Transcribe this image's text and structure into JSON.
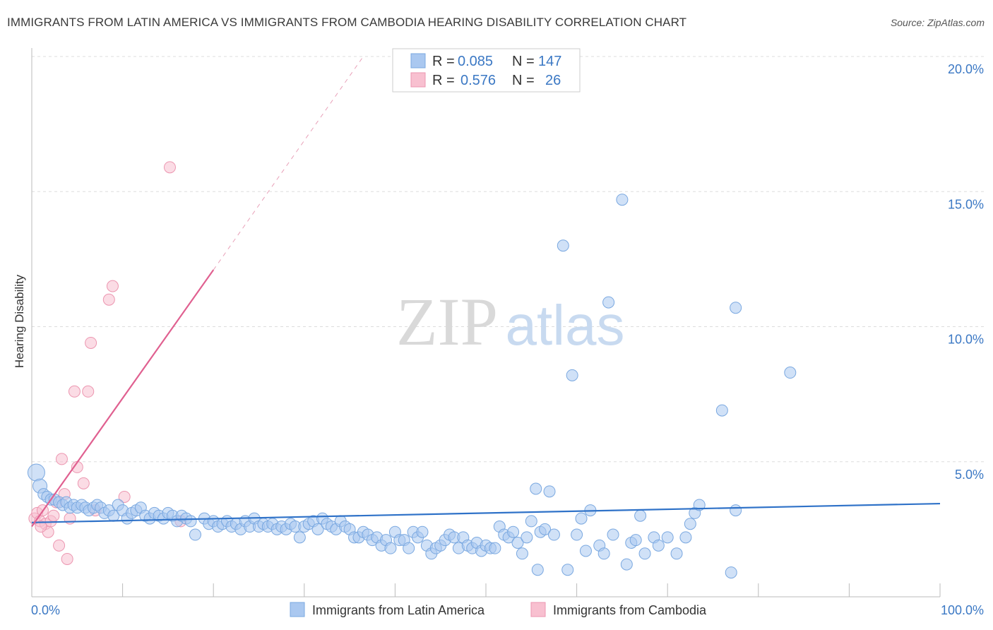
{
  "title": "IMMIGRANTS FROM LATIN AMERICA VS IMMIGRANTS FROM CAMBODIA HEARING DISABILITY CORRELATION CHART",
  "source": "Source: ZipAtlas.com",
  "watermark": {
    "zip": "ZIP",
    "atlas": "atlas"
  },
  "colors": {
    "blue_fill": "#aac8f0",
    "blue_stroke": "#7aa8e0",
    "blue_line": "#2f72c8",
    "pink_fill": "#f8c0d0",
    "pink_stroke": "#ec96b0",
    "pink_line": "#e06090",
    "axis_text": "#3b78c4",
    "grid": "#dddddd"
  },
  "legend": {
    "rows": [
      {
        "r_label": "R =",
        "r_value": "0.085",
        "n_label": "N =",
        "n_value": "147"
      },
      {
        "r_label": "R =",
        "r_value": "0.576",
        "n_label": "N =",
        "n_value": "26"
      }
    ]
  },
  "bottom_legend": [
    "Immigrants from Latin America",
    "Immigrants from Cambodia"
  ],
  "chart_data": {
    "type": "scatter",
    "xlabel": "",
    "ylabel": "Hearing Disability",
    "xlim": [
      0,
      100
    ],
    "ylim": [
      0,
      20
    ],
    "x_tick_labels": [
      "0.0%",
      "100.0%"
    ],
    "y_ticks": [
      5,
      10,
      15,
      20
    ],
    "y_tick_labels": [
      "5.0%",
      "10.0%",
      "15.0%",
      "20.0%"
    ],
    "grid": true,
    "series": [
      {
        "name": "Immigrants from Latin America",
        "color": "blue",
        "trend": {
          "x": [
            0,
            100
          ],
          "y": [
            2.75,
            3.45
          ],
          "dashed_from": null
        },
        "points": [
          [
            0.5,
            4.6
          ],
          [
            0.9,
            4.1
          ],
          [
            1.3,
            3.8
          ],
          [
            1.7,
            3.7
          ],
          [
            2.1,
            3.6
          ],
          [
            2.5,
            3.6
          ],
          [
            3.0,
            3.5
          ],
          [
            3.4,
            3.4
          ],
          [
            3.8,
            3.5
          ],
          [
            4.2,
            3.3
          ],
          [
            4.6,
            3.4
          ],
          [
            5.0,
            3.3
          ],
          [
            5.5,
            3.4
          ],
          [
            5.9,
            3.3
          ],
          [
            6.3,
            3.2
          ],
          [
            6.8,
            3.3
          ],
          [
            7.2,
            3.4
          ],
          [
            7.6,
            3.3
          ],
          [
            8.0,
            3.1
          ],
          [
            8.5,
            3.2
          ],
          [
            9.0,
            3.0
          ],
          [
            9.5,
            3.4
          ],
          [
            10.0,
            3.2
          ],
          [
            10.5,
            2.9
          ],
          [
            11.0,
            3.1
          ],
          [
            11.5,
            3.2
          ],
          [
            12.0,
            3.3
          ],
          [
            12.5,
            3.0
          ],
          [
            13.0,
            2.9
          ],
          [
            13.5,
            3.1
          ],
          [
            14.0,
            3.0
          ],
          [
            14.5,
            2.9
          ],
          [
            15.0,
            3.1
          ],
          [
            15.5,
            3.0
          ],
          [
            16.0,
            2.8
          ],
          [
            16.5,
            3.0
          ],
          [
            17.0,
            2.9
          ],
          [
            17.5,
            2.8
          ],
          [
            18.0,
            2.3
          ],
          [
            19.0,
            2.9
          ],
          [
            19.5,
            2.7
          ],
          [
            20.0,
            2.8
          ],
          [
            20.5,
            2.6
          ],
          [
            21.0,
            2.7
          ],
          [
            21.5,
            2.8
          ],
          [
            22.0,
            2.6
          ],
          [
            22.5,
            2.7
          ],
          [
            23.0,
            2.5
          ],
          [
            23.5,
            2.8
          ],
          [
            24.0,
            2.6
          ],
          [
            24.5,
            2.9
          ],
          [
            25.0,
            2.6
          ],
          [
            25.5,
            2.7
          ],
          [
            26.0,
            2.6
          ],
          [
            26.5,
            2.7
          ],
          [
            27.0,
            2.5
          ],
          [
            27.5,
            2.6
          ],
          [
            28.0,
            2.5
          ],
          [
            28.5,
            2.7
          ],
          [
            29.0,
            2.6
          ],
          [
            29.5,
            2.2
          ],
          [
            30.0,
            2.6
          ],
          [
            30.5,
            2.7
          ],
          [
            31.0,
            2.8
          ],
          [
            31.5,
            2.5
          ],
          [
            32.0,
            2.9
          ],
          [
            32.5,
            2.7
          ],
          [
            33.0,
            2.6
          ],
          [
            33.5,
            2.5
          ],
          [
            34.0,
            2.8
          ],
          [
            34.5,
            2.6
          ],
          [
            35.0,
            2.5
          ],
          [
            35.5,
            2.2
          ],
          [
            36.0,
            2.2
          ],
          [
            36.5,
            2.4
          ],
          [
            37.0,
            2.3
          ],
          [
            37.5,
            2.1
          ],
          [
            38.0,
            2.2
          ],
          [
            38.5,
            1.9
          ],
          [
            39.0,
            2.1
          ],
          [
            39.5,
            1.8
          ],
          [
            40.0,
            2.4
          ],
          [
            40.5,
            2.1
          ],
          [
            41.0,
            2.1
          ],
          [
            41.5,
            1.8
          ],
          [
            42.0,
            2.4
          ],
          [
            42.5,
            2.2
          ],
          [
            43.0,
            2.4
          ],
          [
            43.5,
            1.9
          ],
          [
            44.0,
            1.6
          ],
          [
            44.5,
            1.8
          ],
          [
            45.0,
            1.9
          ],
          [
            45.5,
            2.1
          ],
          [
            46.0,
            2.3
          ],
          [
            46.5,
            2.2
          ],
          [
            47.0,
            1.8
          ],
          [
            47.5,
            2.2
          ],
          [
            48.0,
            1.9
          ],
          [
            48.5,
            1.8
          ],
          [
            49.0,
            2.0
          ],
          [
            49.5,
            1.7
          ],
          [
            50.0,
            1.9
          ],
          [
            50.5,
            1.8
          ],
          [
            51.0,
            1.8
          ],
          [
            51.5,
            2.6
          ],
          [
            52.0,
            2.3
          ],
          [
            52.5,
            2.2
          ],
          [
            53.0,
            2.4
          ],
          [
            53.5,
            2.0
          ],
          [
            54.0,
            1.6
          ],
          [
            54.5,
            2.2
          ],
          [
            55.0,
            2.8
          ],
          [
            55.5,
            4.0
          ],
          [
            56.0,
            2.4
          ],
          [
            56.5,
            2.5
          ],
          [
            57.0,
            3.9
          ],
          [
            57.5,
            2.3
          ],
          [
            55.7,
            1.0
          ],
          [
            58.5,
            13.0
          ],
          [
            59.5,
            8.2
          ],
          [
            59.0,
            1.0
          ],
          [
            60.0,
            2.3
          ],
          [
            60.5,
            2.9
          ],
          [
            61.0,
            1.7
          ],
          [
            61.5,
            3.2
          ],
          [
            62.5,
            1.9
          ],
          [
            63.0,
            1.6
          ],
          [
            63.5,
            10.9
          ],
          [
            64.0,
            2.3
          ],
          [
            65.0,
            14.7
          ],
          [
            65.5,
            1.2
          ],
          [
            66.0,
            2.0
          ],
          [
            66.5,
            2.1
          ],
          [
            67.0,
            3.0
          ],
          [
            67.5,
            1.6
          ],
          [
            68.5,
            2.2
          ],
          [
            69.0,
            1.9
          ],
          [
            70.0,
            2.2
          ],
          [
            71.0,
            1.6
          ],
          [
            72.0,
            2.2
          ],
          [
            72.5,
            2.7
          ],
          [
            73.0,
            3.1
          ],
          [
            73.5,
            3.4
          ],
          [
            76.0,
            6.9
          ],
          [
            77.5,
            3.2
          ],
          [
            77.5,
            10.7
          ],
          [
            77.0,
            0.9
          ],
          [
            83.5,
            8.3
          ]
        ]
      },
      {
        "name": "Immigrants from Cambodia",
        "color": "pink",
        "trend": {
          "x": [
            0,
            20
          ],
          "y": [
            2.6,
            12.1
          ],
          "dashed_to": {
            "x": 36.5,
            "y": 20
          }
        },
        "points": [
          [
            0.3,
            2.9
          ],
          [
            0.6,
            3.1
          ],
          [
            0.9,
            2.8
          ],
          [
            1.2,
            3.2
          ],
          [
            1.5,
            2.7
          ],
          [
            1.8,
            2.4
          ],
          [
            2.1,
            2.8
          ],
          [
            2.4,
            3.0
          ],
          [
            2.7,
            3.5
          ],
          [
            3.0,
            1.9
          ],
          [
            3.3,
            5.1
          ],
          [
            3.6,
            3.8
          ],
          [
            3.9,
            1.4
          ],
          [
            4.2,
            2.9
          ],
          [
            5.0,
            4.8
          ],
          [
            4.7,
            7.6
          ],
          [
            5.7,
            4.2
          ],
          [
            6.2,
            7.6
          ],
          [
            6.5,
            9.4
          ],
          [
            7.0,
            3.2
          ],
          [
            8.5,
            11.0
          ],
          [
            8.9,
            11.5
          ],
          [
            10.2,
            3.7
          ],
          [
            16.4,
            2.8
          ],
          [
            15.2,
            15.9
          ],
          [
            1.0,
            2.6
          ]
        ]
      }
    ]
  }
}
